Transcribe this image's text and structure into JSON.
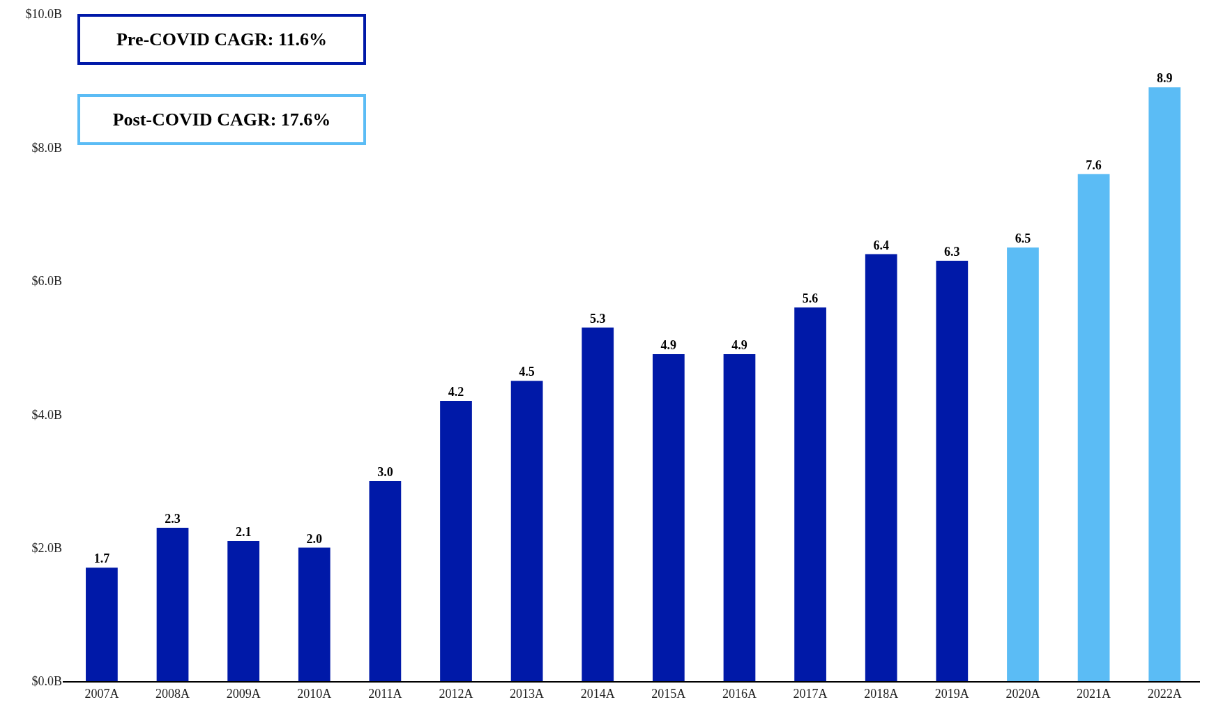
{
  "chart_data": {
    "type": "bar",
    "categories": [
      "2007A",
      "2008A",
      "2009A",
      "2010A",
      "2011A",
      "2012A",
      "2013A",
      "2014A",
      "2015A",
      "2016A",
      "2017A",
      "2018A",
      "2019A",
      "2020A",
      "2021A",
      "2022A"
    ],
    "values": [
      1.7,
      2.3,
      2.1,
      2.0,
      3.0,
      4.2,
      4.5,
      5.3,
      4.9,
      4.9,
      5.6,
      6.4,
      6.3,
      6.5,
      7.6,
      8.9
    ],
    "colors": [
      "#0019a8",
      "#0019a8",
      "#0019a8",
      "#0019a8",
      "#0019a8",
      "#0019a8",
      "#0019a8",
      "#0019a8",
      "#0019a8",
      "#0019a8",
      "#0019a8",
      "#0019a8",
      "#0019a8",
      "#5bbcf5",
      "#5bbcf5",
      "#5bbcf5"
    ],
    "value_labels": [
      "1.7",
      "2.3",
      "2.1",
      "2.0",
      "3.0",
      "4.2",
      "4.5",
      "5.3",
      "4.9",
      "4.9",
      "5.6",
      "6.4",
      "6.3",
      "6.5",
      "7.6",
      "8.9"
    ],
    "ylim": [
      0,
      10
    ],
    "yticks": [
      {
        "value": 0,
        "label": "$0.0B"
      },
      {
        "value": 2,
        "label": "$2.0B"
      },
      {
        "value": 4,
        "label": "$4.0B"
      },
      {
        "value": 6,
        "label": "$6.0B"
      },
      {
        "value": 8,
        "label": "$8.0B"
      },
      {
        "value": 10,
        "label": "$10.0B"
      }
    ],
    "grid": false,
    "legend": false,
    "annotations": [
      "Pre-COVID CAGR: 11.6%",
      "Post-COVID CAGR: 17.6%"
    ]
  }
}
